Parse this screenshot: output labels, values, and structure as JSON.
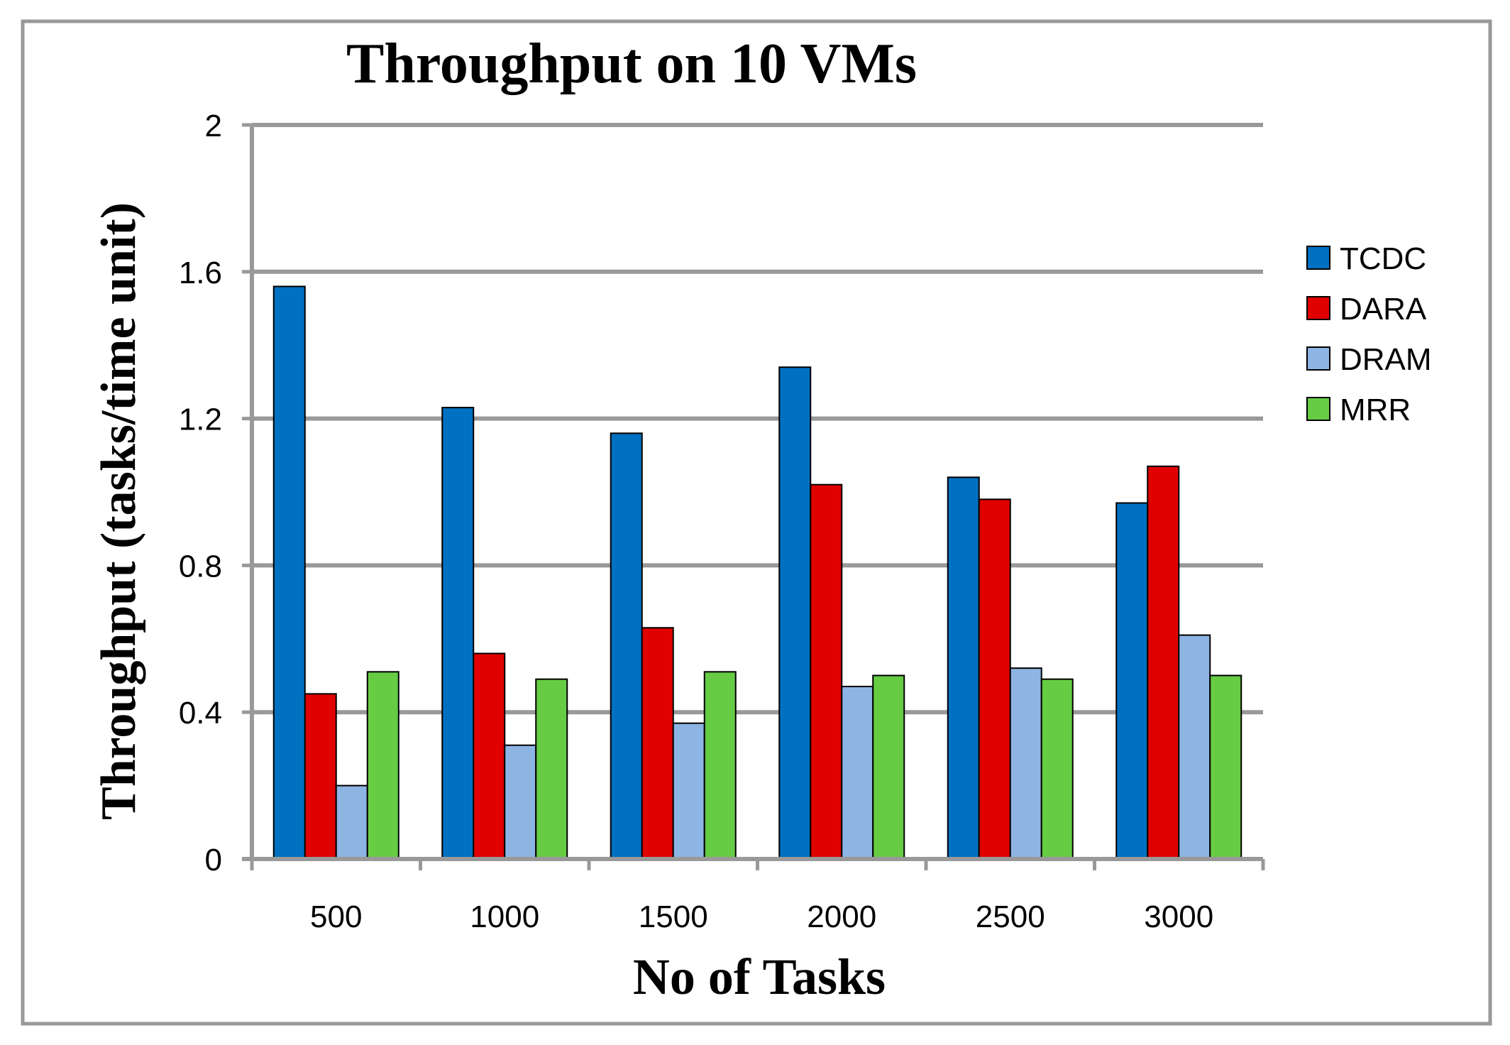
{
  "chart_data": {
    "type": "bar",
    "title": "Throughput on 10 VMs",
    "xlabel": "No of Tasks",
    "ylabel": "Throughput (tasks/time unit)",
    "ylim": [
      0,
      2
    ],
    "yticks": [
      0,
      0.4,
      0.8,
      1.2,
      1.6,
      2
    ],
    "ytick_labels": [
      "0",
      "0.4",
      "0.8",
      "1.2",
      "1.6",
      "2"
    ],
    "grid": true,
    "legend_position": "right",
    "categories": [
      "500",
      "1000",
      "1500",
      "2000",
      "2500",
      "3000"
    ],
    "series": [
      {
        "name": "TCDC",
        "color": "#0070C0",
        "values": [
          1.56,
          1.23,
          1.16,
          1.34,
          1.04,
          0.97
        ]
      },
      {
        "name": "DARA",
        "color": "#E00000",
        "values": [
          0.45,
          0.56,
          0.63,
          1.02,
          0.98,
          1.07
        ]
      },
      {
        "name": "DRAM",
        "color": "#8EB4E3",
        "values": [
          0.2,
          0.31,
          0.37,
          0.47,
          0.52,
          0.61
        ]
      },
      {
        "name": "MRR",
        "color": "#66CC44",
        "values": [
          0.51,
          0.49,
          0.51,
          0.5,
          0.49,
          0.5
        ]
      }
    ]
  }
}
